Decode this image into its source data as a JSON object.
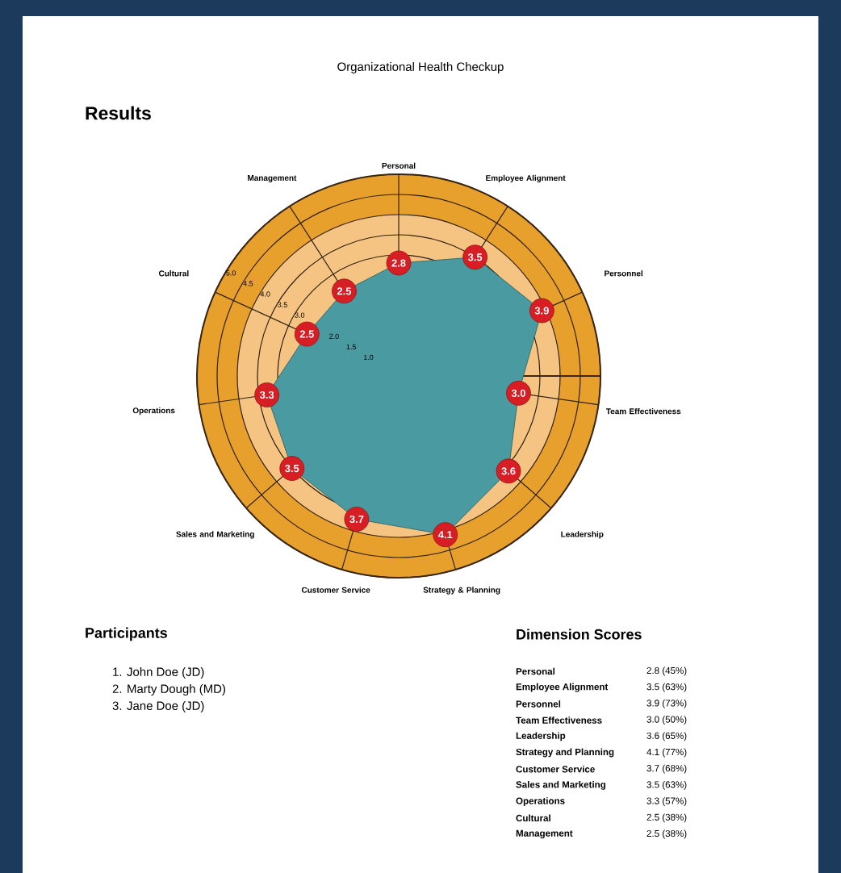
{
  "chart_data": {
    "type": "radar",
    "title": "Organizational Health Checkup",
    "subtitle": "Results",
    "categories": [
      "Personal",
      "Employee Alignment",
      "Personnel",
      "Team Effectiveness",
      "Leadership",
      "Strategy & Planning",
      "Customer Service",
      "Sales and Marketing",
      "Operations",
      "Cultural",
      "Management"
    ],
    "series": [
      {
        "color": "#4a9aa2",
        "values": [
          2.8,
          3.5,
          3.9,
          3.0,
          3.6,
          4.1,
          3.7,
          3.5,
          3.3,
          2.5,
          2.5
        ],
        "value_labels": [
          "2.8",
          "3.5",
          "3.9",
          "3.0",
          "3.6",
          "4.1",
          "3.7",
          "3.5",
          "3.3",
          "2.5",
          "2.5"
        ]
      }
    ],
    "ylim": [
      0,
      5
    ],
    "yticks": [
      {
        "value": 1,
        "label": "1.0"
      },
      {
        "value": 1.5,
        "label": "1.5"
      },
      {
        "value": 2,
        "label": "2.0"
      },
      {
        "value": 3,
        "label": "3.0"
      },
      {
        "value": 3.5,
        "label": "3.5"
      },
      {
        "value": 4,
        "label": "4.0"
      },
      {
        "value": 4.5,
        "label": "4.5"
      },
      {
        "value": 5,
        "label": "5.0"
      }
    ],
    "grid": true,
    "marker": "circle",
    "annotations": [
      "Participants",
      "1. John Doe (JD)",
      "2. Marty Dough (MD)",
      "3. Jane Doe (JD)",
      "Dimension Scores",
      "Personal",
      "2.8 (45%)",
      "Employee Alignment",
      "3.5 (63%)",
      "Personnel",
      "3.9 (73%)",
      "Team Effectiveness",
      "3.0 (50%)",
      "Leadership",
      "3.6 (65%)",
      "Strategy and Planning",
      "4.1 (77%)",
      "Customer Service",
      "3.7 (68%)",
      "Sales and Marketing",
      "3.5 (63%)",
      "Operations",
      "3.3 (57%)",
      "Cultural",
      "2.5 (38%)",
      "Management",
      "2.5 (38%)"
    ]
  }
}
